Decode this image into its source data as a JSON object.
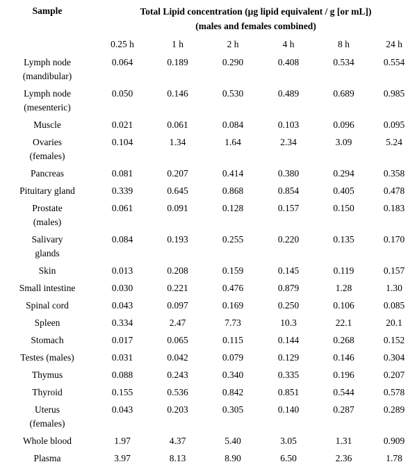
{
  "header": {
    "sample_label": "Sample",
    "title_line1": "Total Lipid concentration (µg lipid equivalent / g [or mL])",
    "title_line2": "(males and females combined)",
    "time_columns": [
      "0.25 h",
      "1 h",
      "2 h",
      "4 h",
      "8 h",
      "24 h"
    ]
  },
  "table": {
    "rows": [
      {
        "sample_lines": [
          "Lymph node",
          "(mandibular)"
        ],
        "values": [
          "0.064",
          "0.189",
          "0.290",
          "0.408",
          "0.534",
          "0.554"
        ]
      },
      {
        "sample_lines": [
          "Lymph node",
          "(mesenteric)"
        ],
        "values": [
          "0.050",
          "0.146",
          "0.530",
          "0.489",
          "0.689",
          "0.985"
        ]
      },
      {
        "sample_lines": [
          "Muscle"
        ],
        "values": [
          "0.021",
          "0.061",
          "0.084",
          "0.103",
          "0.096",
          "0.095"
        ]
      },
      {
        "sample_lines": [
          "Ovaries",
          "(females)"
        ],
        "values": [
          "0.104",
          "1.34",
          "1.64",
          "2.34",
          "3.09",
          "5.24"
        ]
      },
      {
        "sample_lines": [
          "Pancreas"
        ],
        "values": [
          "0.081",
          "0.207",
          "0.414",
          "0.380",
          "0.294",
          "0.358"
        ]
      },
      {
        "sample_lines": [
          "Pituitary gland"
        ],
        "values": [
          "0.339",
          "0.645",
          "0.868",
          "0.854",
          "0.405",
          "0.478"
        ]
      },
      {
        "sample_lines": [
          "Prostate",
          "(males)"
        ],
        "values": [
          "0.061",
          "0.091",
          "0.128",
          "0.157",
          "0.150",
          "0.183"
        ]
      },
      {
        "sample_lines": [
          "Salivary",
          "glands"
        ],
        "values": [
          "0.084",
          "0.193",
          "0.255",
          "0.220",
          "0.135",
          "0.170"
        ]
      },
      {
        "sample_lines": [
          "Skin"
        ],
        "values": [
          "0.013",
          "0.208",
          "0.159",
          "0.145",
          "0.119",
          "0.157"
        ]
      },
      {
        "sample_lines": [
          "Small intestine"
        ],
        "values": [
          "0.030",
          "0.221",
          "0.476",
          "0.879",
          "1.28",
          "1.30"
        ]
      },
      {
        "sample_lines": [
          "Spinal cord"
        ],
        "values": [
          "0.043",
          "0.097",
          "0.169",
          "0.250",
          "0.106",
          "0.085"
        ]
      },
      {
        "sample_lines": [
          "Spleen"
        ],
        "values": [
          "0.334",
          "2.47",
          "7.73",
          "10.3",
          "22.1",
          "20.1"
        ]
      },
      {
        "sample_lines": [
          "Stomach"
        ],
        "values": [
          "0.017",
          "0.065",
          "0.115",
          "0.144",
          "0.268",
          "0.152"
        ]
      },
      {
        "sample_lines": [
          "Testes (males)"
        ],
        "values": [
          "0.031",
          "0.042",
          "0.079",
          "0.129",
          "0.146",
          "0.304"
        ]
      },
      {
        "sample_lines": [
          "Thymus"
        ],
        "values": [
          "0.088",
          "0.243",
          "0.340",
          "0.335",
          "0.196",
          "0.207"
        ]
      },
      {
        "sample_lines": [
          "Thyroid"
        ],
        "values": [
          "0.155",
          "0.536",
          "0.842",
          "0.851",
          "0.544",
          "0.578"
        ]
      },
      {
        "sample_lines": [
          "Uterus",
          "(females)"
        ],
        "values": [
          "0.043",
          "0.203",
          "0.305",
          "0.140",
          "0.287",
          "0.289"
        ]
      },
      {
        "sample_lines": [
          "Whole blood"
        ],
        "values": [
          "1.97",
          "4.37",
          "5.40",
          "3.05",
          "1.31",
          "0.909"
        ]
      },
      {
        "sample_lines": [
          "Plasma"
        ],
        "values": [
          "3.97",
          "8.13",
          "8.90",
          "6.50",
          "2.36",
          "1.78"
        ]
      }
    ]
  },
  "colors": {
    "text": "#000000",
    "background": "#ffffff"
  }
}
